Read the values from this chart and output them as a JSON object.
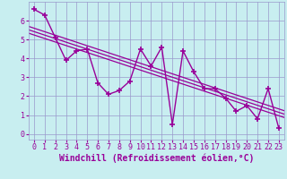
{
  "xlabel": "Windchill (Refroidissement éolien,°C)",
  "ylabel": "",
  "background_color": "#c8eef0",
  "line_color": "#990099",
  "grid_color": "#9999cc",
  "x_data": [
    0,
    1,
    2,
    3,
    4,
    5,
    6,
    7,
    8,
    9,
    10,
    11,
    12,
    13,
    14,
    15,
    16,
    17,
    18,
    19,
    20,
    21,
    22,
    23
  ],
  "y_data": [
    6.6,
    6.3,
    5.1,
    3.9,
    4.4,
    4.5,
    2.7,
    2.1,
    2.3,
    2.8,
    4.5,
    3.6,
    4.6,
    0.5,
    4.4,
    3.3,
    2.4,
    2.4,
    1.9,
    1.2,
    1.5,
    0.8,
    2.4,
    0.3
  ],
  "xlim": [
    -0.5,
    23.5
  ],
  "ylim": [
    -0.3,
    7.0
  ],
  "yticks": [
    0,
    1,
    2,
    3,
    4,
    5,
    6
  ],
  "xticks": [
    0,
    1,
    2,
    3,
    4,
    5,
    6,
    7,
    8,
    9,
    10,
    11,
    12,
    13,
    14,
    15,
    16,
    17,
    18,
    19,
    20,
    21,
    22,
    23
  ],
  "marker": "+",
  "marker_size": 5,
  "line_width": 1.0,
  "xlabel_fontsize": 7,
  "tick_fontsize": 6,
  "trend_offsets": [
    0.0,
    0.18,
    0.36
  ],
  "trend_linewidth": 0.9
}
